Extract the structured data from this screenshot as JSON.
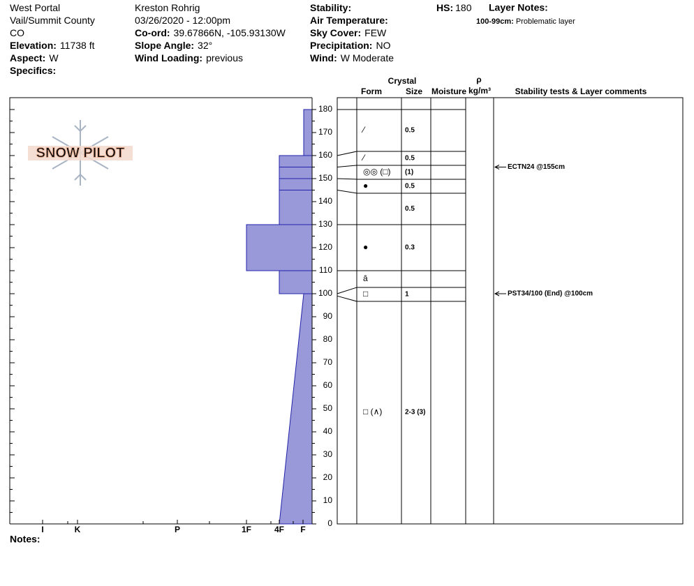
{
  "header": {
    "column1": [
      {
        "value": "West Portal"
      },
      {
        "value": "Vail/Summit County"
      },
      {
        "value": "CO"
      },
      {
        "label": "Elevation:",
        "value": "11738 ft"
      },
      {
        "label": "Aspect:",
        "value": "W"
      },
      {
        "label": "Specifics:"
      }
    ],
    "column2": [
      {
        "value": "Kreston Rohrig"
      },
      {
        "value": "03/26/2020 - 12:00pm"
      },
      {
        "label": "Co-ord:",
        "value": "39.67866N, -105.93130W"
      },
      {
        "label": "Slope Angle:",
        "value": "32°"
      },
      {
        "label": "Wind Loading:",
        "value": "previous"
      }
    ],
    "column3": [
      {
        "label": "Stability:"
      },
      {
        "label": "Air Temperature:"
      },
      {
        "label": "Sky Cover:",
        "value": "FEW"
      },
      {
        "label": "Precipitation:",
        "value": "NO"
      },
      {
        "label": "Wind:",
        "value": "W Moderate"
      }
    ],
    "hs": {
      "label": "HS:",
      "value": 180
    },
    "layer_notes": {
      "label": "Layer Notes:",
      "items": [
        {
          "range": "100-99cm:",
          "text": "Problematic layer"
        }
      ]
    }
  },
  "logo": "SNOW PILOT",
  "chart_data": {
    "type": "snow-profile",
    "ylim": [
      0,
      180
    ],
    "yticks": [
      0,
      10,
      20,
      30,
      40,
      50,
      60,
      70,
      80,
      90,
      100,
      110,
      120,
      130,
      140,
      150,
      160,
      170,
      180
    ],
    "hardness_scale": [
      "I",
      "K",
      "P",
      "1F",
      "4F",
      "F"
    ],
    "color": "#9999d9",
    "layers": [
      {
        "top": 180,
        "bottom": 160,
        "hardness": "F"
      },
      {
        "top": 160,
        "bottom": 155,
        "hardness": "4F"
      },
      {
        "top": 155,
        "bottom": 150,
        "hardness": "4F"
      },
      {
        "top": 150,
        "bottom": 145,
        "hardness": "4F"
      },
      {
        "top": 145,
        "bottom": 130,
        "hardness": "4F"
      },
      {
        "top": 130,
        "bottom": 110,
        "hardness": "1F"
      },
      {
        "top": 110,
        "bottom": 100,
        "hardness": "4F"
      },
      {
        "top": 100,
        "bottom": 0,
        "hardness_top": "F",
        "hardness_bottom": "4F"
      }
    ]
  },
  "table": {
    "headers": {
      "crystal": "Crystal",
      "form": "Form",
      "size": "Size",
      "moisture": "Moisture",
      "density_symbol": "ρ",
      "density_unit": "kg/m³",
      "comments": "Stability tests & Layer comments"
    },
    "rows": [
      {
        "top": 180,
        "form": "⁄",
        "size": "0.5"
      },
      {
        "top": 160,
        "form": "⁄",
        "size": "0.5"
      },
      {
        "top": 155,
        "form": "◎◎ (□)",
        "size": "(1)"
      },
      {
        "top": 150,
        "form": "●",
        "size": "0.5"
      },
      {
        "top": 145,
        "size": "0.5"
      },
      {
        "top": 130,
        "form": "●",
        "size": "0.3"
      },
      {
        "top": 110,
        "form": "ȃ"
      },
      {
        "top": 100,
        "form": "□",
        "size": "1"
      },
      {
        "top": 99,
        "form": "□ (∧)",
        "size": "2-3 (3)"
      }
    ],
    "stability_tests": [
      {
        "depth": 155,
        "text": "ECTN24 @155cm"
      },
      {
        "depth": 100,
        "text": "PST34/100 (End) @100cm"
      }
    ]
  },
  "notes": {
    "label": "Notes:"
  }
}
